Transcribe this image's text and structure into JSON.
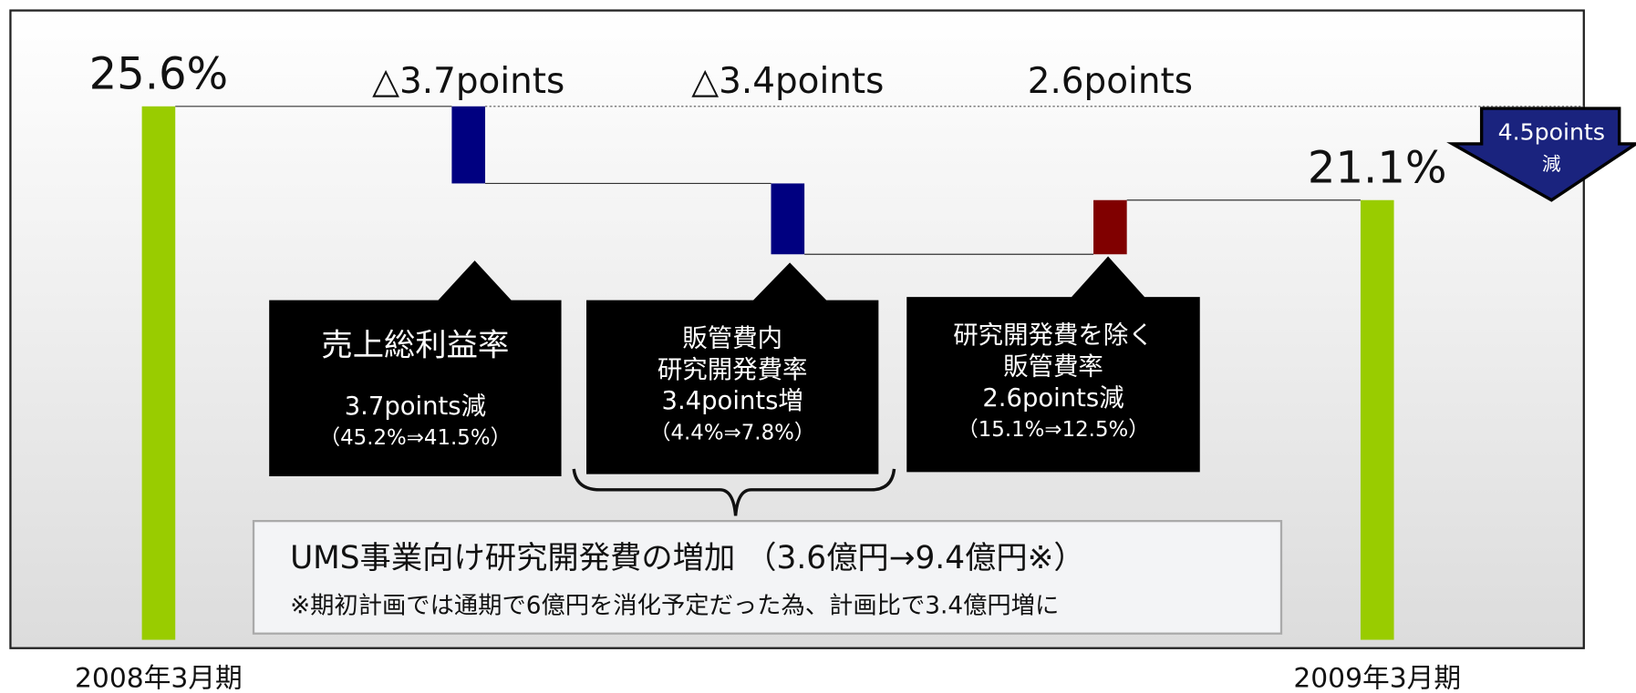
{
  "chart_data": {
    "type": "waterfall",
    "categories": [
      "2008年3月期",
      null,
      null,
      null,
      "2009年3月期"
    ],
    "values": [
      25.6,
      -3.7,
      -3.4,
      2.6,
      21.1
    ],
    "value_labels": [
      "25.6%",
      "△3.7points",
      "△3.4points",
      "2.6points",
      "21.1%"
    ],
    "colors": {
      "total": "#99cc00",
      "decrease": "#000080",
      "increase": "#800000"
    },
    "callouts": [
      {
        "lines": [
          "売上総利益率",
          "3.7points減",
          "（45.2%⇒41.5%）"
        ]
      },
      {
        "lines": [
          "販管費内",
          "研究開発費率",
          "3.4points増",
          "（4.4%⇒7.8%）"
        ]
      },
      {
        "lines": [
          "研究開発費を除く",
          "販管費率",
          "2.6points減",
          "（15.1%⇒12.5%）"
        ]
      }
    ],
    "note": {
      "title": "UMS事業向け研究開発費の増加 （3.6億円→9.4億円※）",
      "text": "※期初計画では通期で6億円を消化予定だった為、計画比で3.4億円増に"
    },
    "badge": [
      "4.5points",
      "減"
    ]
  }
}
